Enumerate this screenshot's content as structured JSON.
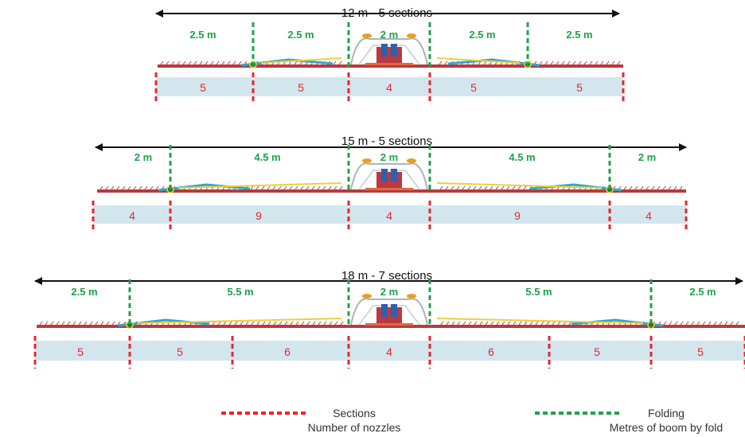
{
  "colors": {
    "section_line": "#e8262c",
    "fold_line": "#1fa14a",
    "fold_label": "#1fa14a",
    "nozzle_count": "#e8262c",
    "strip": "#d3e6ee",
    "boom_red": "#b83a3f",
    "boom_blue": "#2fa6d6",
    "boom_yellow": "#e8d23a",
    "arrow": "#111111"
  },
  "rows": [
    {
      "title": "12 m - 5 sections",
      "folds": [
        "2.5 m",
        "2.5 m",
        "2 m",
        "2.5 m",
        "2.5 m"
      ],
      "nozzles": [
        "5",
        "5",
        "4",
        "5",
        "5"
      ]
    },
    {
      "title": "15 m - 5 sections",
      "folds": [
        "2 m",
        "4.5 m",
        "2 m",
        "4.5 m",
        "2 m"
      ],
      "nozzles": [
        "4",
        "9",
        "4",
        "9",
        "4"
      ]
    },
    {
      "title": "18 m - 7 sections",
      "folds": [
        "2.5 m",
        "5.5 m",
        "2 m",
        "5.5 m",
        "2.5 m"
      ],
      "nozzles": [
        "5",
        "5",
        "6",
        "4",
        "6",
        "5",
        "5"
      ]
    }
  ],
  "legend": {
    "sections_label": "Sections",
    "sections_sub": "Number of nozzles",
    "folding_label": "Folding",
    "folding_sub": "Metres of boom by fold"
  }
}
